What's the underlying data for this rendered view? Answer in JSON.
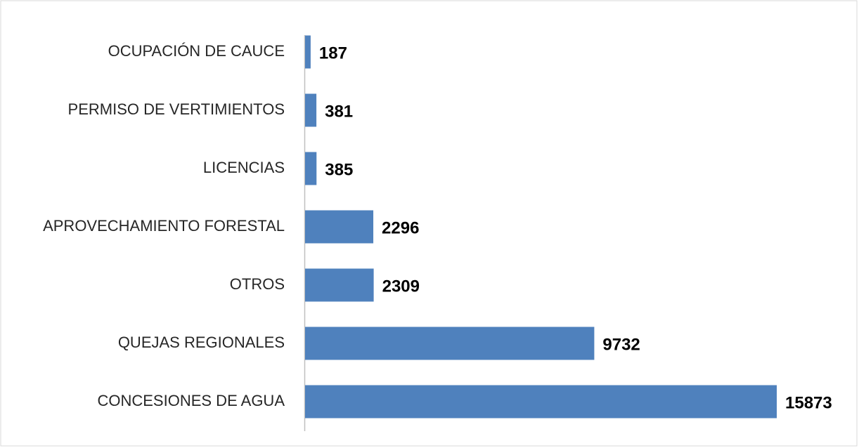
{
  "chart_data": {
    "type": "bar",
    "orientation": "horizontal",
    "categories": [
      "OCUPACIÓN DE CAUCE",
      "PERMISO DE VERTIMIENTOS",
      "LICENCIAS",
      "APROVECHAMIENTO FORESTAL",
      "OTROS",
      "QUEJAS REGIONALES",
      "CONCESIONES DE AGUA"
    ],
    "values": [
      187,
      381,
      385,
      2296,
      2309,
      9732,
      15873
    ],
    "color": "#4f81bd"
  }
}
